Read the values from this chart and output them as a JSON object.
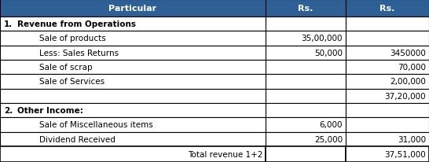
{
  "header_bg": "#2E6096",
  "header_text_color": "#FFFFFF",
  "cell_bg": "#FFFFFF",
  "border_color": "#000000",
  "header": [
    "Particular",
    "Rs.",
    "Rs."
  ],
  "rows": [
    {
      "num": "1.",
      "bold": true,
      "indent": false,
      "text": "Revenue from Operations",
      "col1": "",
      "col2": ""
    },
    {
      "num": "",
      "bold": false,
      "indent": true,
      "text": "Sale of products",
      "col1": "35,00,000",
      "col2": ""
    },
    {
      "num": "",
      "bold": false,
      "indent": true,
      "text": "Less: Sales Returns",
      "col1": "50,000",
      "col2": "3450000"
    },
    {
      "num": "",
      "bold": false,
      "indent": true,
      "text": "Sale of scrap",
      "col1": "",
      "col2": "70,000"
    },
    {
      "num": "",
      "bold": false,
      "indent": true,
      "text": "Sale of Services",
      "col1": "",
      "col2": "2,00,000"
    },
    {
      "num": "",
      "bold": false,
      "indent": true,
      "text": "",
      "col1": "",
      "col2": "37,20,000"
    },
    {
      "num": "2.",
      "bold": true,
      "indent": false,
      "text": "Other Income:",
      "col1": "",
      "col2": ""
    },
    {
      "num": "",
      "bold": false,
      "indent": true,
      "text": "Sale of Miscellaneous items",
      "col1": "6,000",
      "col2": ""
    },
    {
      "num": "",
      "bold": false,
      "indent": true,
      "text": "Dividend Received",
      "col1": "25,000",
      "col2": "31,000"
    }
  ],
  "footer": {
    "text": "Total revenue 1+2",
    "col1": "",
    "col2": "37,51,000"
  },
  "figsize": [
    5.46,
    2.07
  ],
  "dpi": 100
}
